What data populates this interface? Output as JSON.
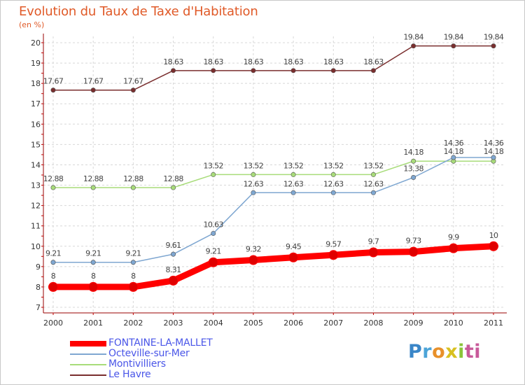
{
  "chart_data": {
    "type": "line",
    "title": "Evolution du Taux de Taxe d'Habitation",
    "unit_label": "(en %)",
    "x": [
      "2000",
      "2001",
      "2002",
      "2003",
      "2004",
      "2005",
      "2006",
      "2007",
      "2008",
      "2009",
      "2010",
      "2011"
    ],
    "ylim": [
      7,
      20
    ],
    "yticks": [
      7,
      8,
      9,
      10,
      11,
      12,
      13,
      14,
      15,
      16,
      17,
      18,
      19,
      20
    ],
    "grid": "dashed",
    "legend_position": "bottom-left",
    "series": [
      {
        "name": "FONTAINE-LA-MALLET",
        "color": "#ff0000",
        "values": [
          8,
          8,
          8,
          8.31,
          9.21,
          9.32,
          9.45,
          9.57,
          9.7,
          9.73,
          9.9,
          10
        ],
        "labels": [
          "8",
          "8",
          "8",
          "8.31",
          "9.21",
          "9.32",
          "9.45",
          "9.57",
          "9.7",
          "9.73",
          "9.9",
          "10"
        ]
      },
      {
        "name": "Octeville-sur-Mer",
        "color": "#7fa7d1",
        "values": [
          9.21,
          9.21,
          9.21,
          9.61,
          10.63,
          12.63,
          12.63,
          12.63,
          12.63,
          13.38,
          14.36,
          14.36
        ],
        "labels": [
          "9.21",
          "9.21",
          "9.21",
          "9.61",
          "10.63",
          "12.63",
          "12.63",
          "12.63",
          "12.63",
          "13.38",
          "14.36",
          "14.36"
        ]
      },
      {
        "name": "Montivilliers",
        "color": "#a8dc7a",
        "values": [
          12.88,
          12.88,
          12.88,
          12.88,
          13.52,
          13.52,
          13.52,
          13.52,
          13.52,
          14.18,
          14.18,
          14.18
        ],
        "labels": [
          "12.88",
          "12.88",
          "12.88",
          "12.88",
          "13.52",
          "13.52",
          "13.52",
          "13.52",
          "13.52",
          "14.18",
          "14.18",
          "14.18"
        ]
      },
      {
        "name": "Le Havre",
        "color": "#7a2e2e",
        "values": [
          17.67,
          17.67,
          17.67,
          18.63,
          18.63,
          18.63,
          18.63,
          18.63,
          18.63,
          19.84,
          19.84,
          19.84
        ],
        "labels": [
          "17.67",
          "17.67",
          "17.67",
          "18.63",
          "18.63",
          "18.63",
          "18.63",
          "18.63",
          "18.63",
          "19.84",
          "19.84",
          "19.84"
        ]
      }
    ]
  },
  "legend": [
    {
      "label": "FONTAINE-LA-MALLET",
      "color": "#ff0000",
      "stroke": "thick"
    },
    {
      "label": "Octeville-sur-Mer",
      "color": "#7fa7d1",
      "stroke": "thin"
    },
    {
      "label": "Montivilliers",
      "color": "#a8dc7a",
      "stroke": "thin"
    },
    {
      "label": "Le Havre",
      "color": "#7a2e2e",
      "stroke": "thin"
    }
  ],
  "logo": {
    "parts": [
      "P",
      "r",
      "o",
      "x",
      "i",
      "ti"
    ]
  }
}
